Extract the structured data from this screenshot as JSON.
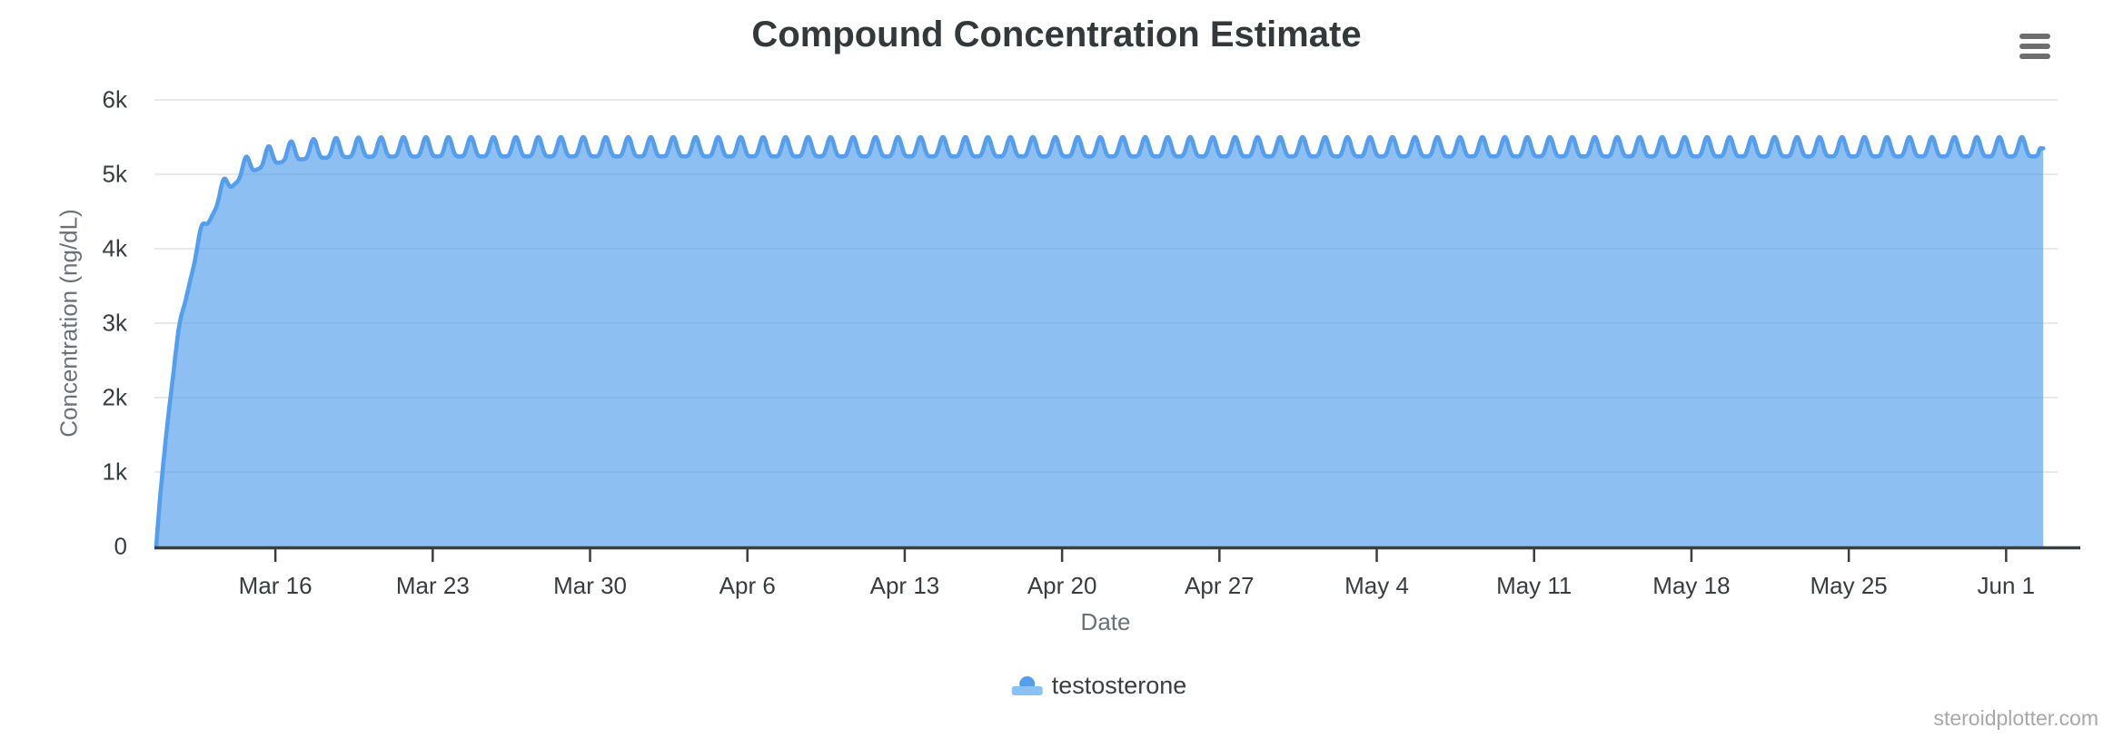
{
  "header": {
    "title": "Compound Concentration Estimate"
  },
  "toolbar": {
    "menu_tooltip": "Menu"
  },
  "chart_data": {
    "type": "area",
    "title": "Compound Concentration Estimate",
    "xlabel": "Date",
    "ylabel": "Concentration (ng/dL)",
    "ylim": [
      0,
      6000
    ],
    "grid": true,
    "legend_position": "bottom",
    "y_ticks": [
      {
        "label": "0",
        "value": 0
      },
      {
        "label": "1k",
        "value": 1000
      },
      {
        "label": "2k",
        "value": 2000
      },
      {
        "label": "3k",
        "value": 3000
      },
      {
        "label": "4k",
        "value": 4000
      },
      {
        "label": "5k",
        "value": 5000
      },
      {
        "label": "6k",
        "value": 6000
      }
    ],
    "x_ticks": [
      {
        "label": "Mar 16",
        "day": 5.3
      },
      {
        "label": "Mar 23",
        "day": 12.3
      },
      {
        "label": "Mar 30",
        "day": 19.3
      },
      {
        "label": "Apr 6",
        "day": 26.3
      },
      {
        "label": "Apr 13",
        "day": 33.3
      },
      {
        "label": "Apr 20",
        "day": 40.3
      },
      {
        "label": "Apr 27",
        "day": 47.3
      },
      {
        "label": "May 4",
        "day": 54.3
      },
      {
        "label": "May 11",
        "day": 61.3
      },
      {
        "label": "May 18",
        "day": 68.3
      },
      {
        "label": "May 25",
        "day": 75.3
      },
      {
        "label": "Jun 1",
        "day": 82.3
      }
    ],
    "series": [
      {
        "name": "testosterone",
        "color": "#549eed",
        "fill_opacity": 0.66,
        "dose_interval_days": 1,
        "duration_days": 83.95,
        "daily_peaks_ng_dl": [
          2850,
          4150,
          4900,
          5150,
          5300,
          5400,
          5460,
          5500
        ],
        "steady_state_peak_ng_dl": 5500,
        "steady_state_trough_ng_dl": 5240,
        "model": {
          "plateau_base": 5240,
          "tooth_amplitude": 260,
          "buildup_tau_days": 1.32,
          "tooth_sharpness": 2.2,
          "end_tail_bump_clamp": 0.42
        }
      }
    ],
    "legend": [
      {
        "label": "testosterone",
        "color": "#549eed"
      }
    ]
  },
  "footer": {
    "watermark": "steroidplotter.com"
  },
  "colors": {
    "series_stroke": "#549eed",
    "series_fill": "rgba(84,158,237,0.66)",
    "gridline": "#e9e9e9",
    "axis_line": "#393e41",
    "tick_text": "#373d3f",
    "axis_title_text": "#6b7176",
    "title_text": "#33383b",
    "menu_icon": "#6e6e6e",
    "watermark_text": "#a8a8a8"
  }
}
